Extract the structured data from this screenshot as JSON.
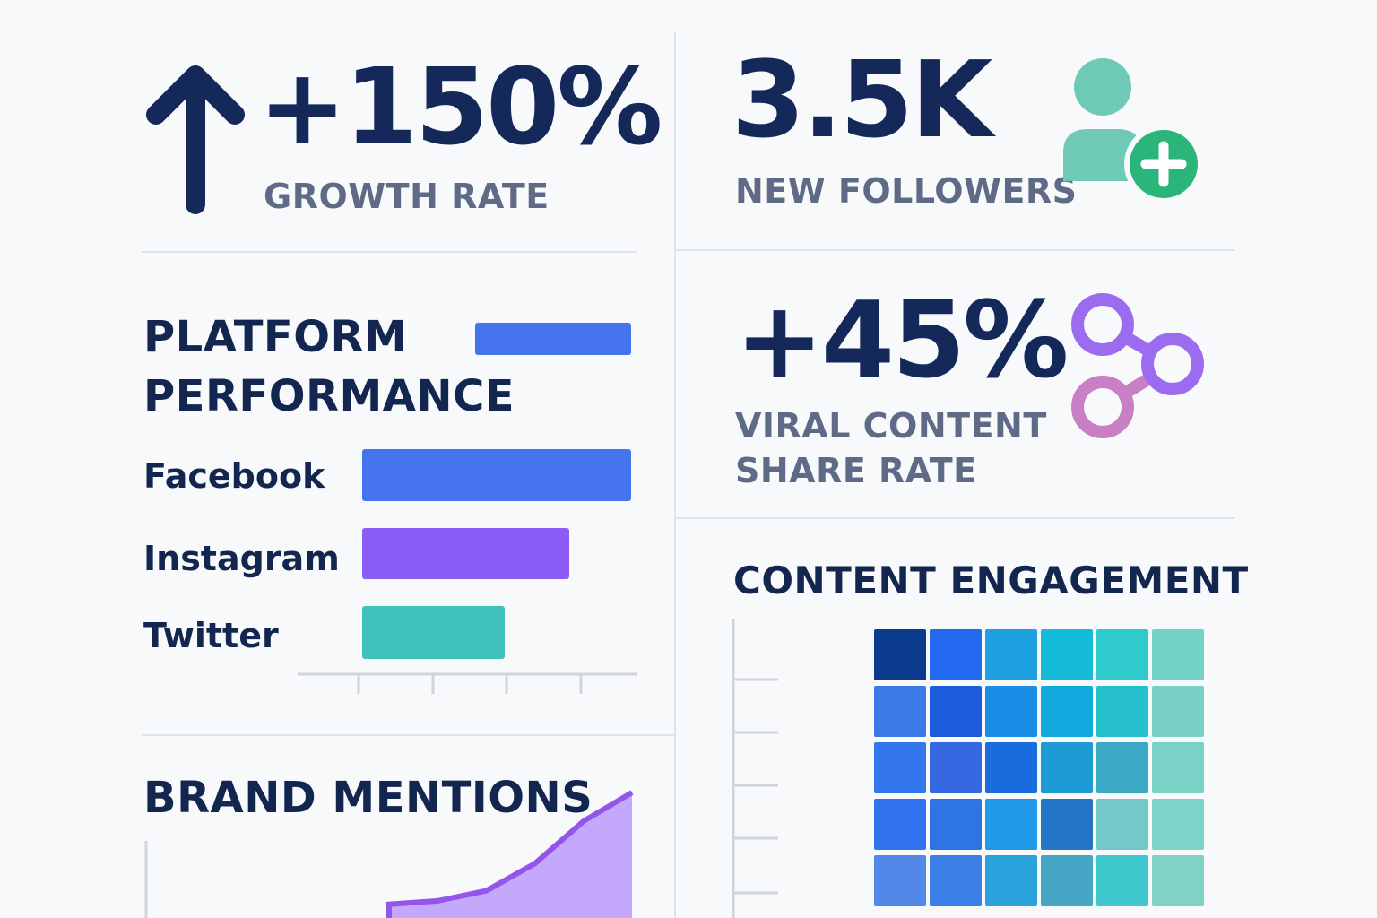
{
  "kpis": {
    "growth": {
      "value": "+150%",
      "label": "GROWTH RATE",
      "icon": "arrow-up-icon"
    },
    "followers": {
      "value": "3.5K",
      "label": "NEW FOLLOWERS",
      "icon": "add-user-icon"
    },
    "viral": {
      "value": "+45%",
      "label_line1": "VIRAL CONTENT",
      "label_line2": "SHARE RATE",
      "icon": "share-icon"
    }
  },
  "platform": {
    "title_line1": "PLATFORM",
    "title_line2": "PERFORMANCE"
  },
  "brand": {
    "title": "BRAND MENTIONS"
  },
  "engagement": {
    "title": "CONTENT ENGAGEMENT"
  },
  "colors": {
    "facebook": "#4573ee",
    "instagram": "#8b5cf6",
    "twitter": "#3fc2bb",
    "brand_fill": "#c4a8fb",
    "brand_line": "#9456ea",
    "followers_icon": "#6fcab5",
    "plus_badge": "#2cb57a",
    "share_icon_a": "#9b6cf0",
    "share_icon_b": "#c97fc6"
  },
  "chart_data": [
    {
      "type": "bar",
      "orientation": "horizontal",
      "categories": [
        "Facebook",
        "Instagram",
        "Twitter"
      ],
      "values": [
        100,
        77,
        53
      ],
      "legend_swatch_value": 58
    },
    {
      "type": "area",
      "x": [
        0,
        1,
        2,
        3,
        4,
        5,
        6,
        7,
        8,
        9,
        10
      ],
      "values": [
        0,
        0,
        0,
        0,
        2,
        6,
        8,
        14,
        30,
        55,
        72
      ]
    },
    {
      "type": "heatmap",
      "rows": 5,
      "cols": 6,
      "cells": [
        [
          "#0b3b8c",
          "#2269f0",
          "#1fa0e0",
          "#14bcd9",
          "#2fcbcc",
          "#72d3c6"
        ],
        [
          "#3a7ae8",
          "#1c5ddc",
          "#1a8ee6",
          "#12aade",
          "#25bfce",
          "#78d1c4"
        ],
        [
          "#3476ec",
          "#3467e0",
          "#1a6bdc",
          "#1e9ad4",
          "#3ba8c6",
          "#7ad1c6"
        ],
        [
          "#3372ee",
          "#2f74e4",
          "#209ae6",
          "#2474c8",
          "#74c9c8",
          "#7ed3c8"
        ],
        [
          "#5289e8",
          "#3c7fe6",
          "#2aa2dc",
          "#45a6c6",
          "#3ec7cc",
          "#7fd2c4"
        ]
      ]
    }
  ]
}
